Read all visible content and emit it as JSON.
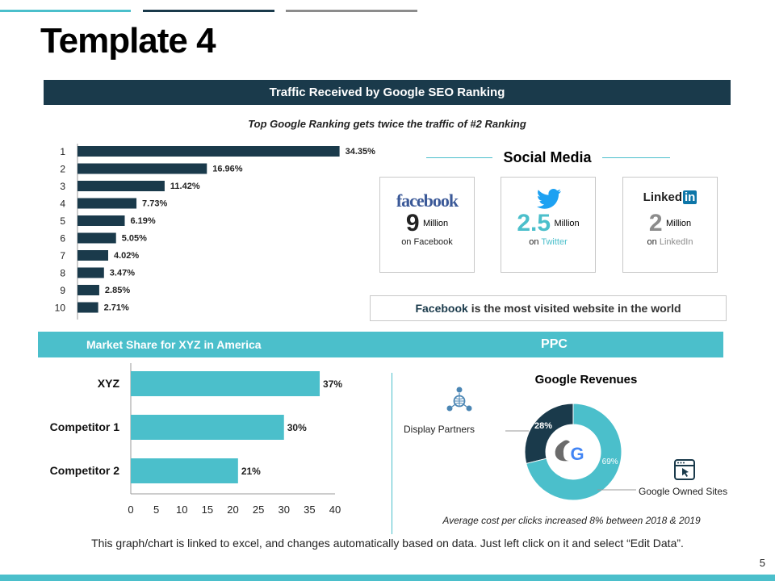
{
  "title": "Template 4",
  "colors": {
    "dark": "#1a3a4b",
    "teal": "#4bbfcb",
    "gray": "#8c8c8c"
  },
  "seo": {
    "band_label": "Traffic Received by Google SEO Ranking",
    "subtitle": "Top Google Ranking gets twice the traffic of #2 Ranking"
  },
  "social": {
    "title": "Social Media",
    "cards": [
      {
        "logo": "facebook",
        "number": "9",
        "unit": "Million",
        "on_prefix": "on ",
        "on_name": "Facebook",
        "color": "#222222"
      },
      {
        "logo": "twitter-bird-icon",
        "number": "2.5",
        "unit": "Million",
        "on_prefix": "on ",
        "on_name": "Twitter",
        "color": "#4bbfcb"
      },
      {
        "logo": "Linked",
        "logo_in": "in",
        "number": "2",
        "unit": "Million",
        "on_prefix": "on ",
        "on_name": "LinkedIn",
        "color": "#8c8c8c"
      }
    ],
    "fact_highlight": "Facebook",
    "fact_rest": " is the most visited website in the world"
  },
  "market": {
    "band_label": "Market Share for XYZ in America"
  },
  "ppc": {
    "band_label": "PPC",
    "chart_title": "Google Revenues",
    "display_partners": "Display Partners",
    "google_owned": "Google Owned Sites",
    "avg_note": "Average cost per clicks increased 8% between 2018  & 2019"
  },
  "footer": "This graph/chart is linked to excel, and changes automatically  based on data. Just left click on it and select “Edit Data”.",
  "page_number": "5",
  "chart_data": [
    {
      "type": "bar",
      "orientation": "horizontal",
      "title": "Traffic Received by Google SEO Ranking",
      "categories": [
        "1",
        "2",
        "3",
        "4",
        "5",
        "6",
        "7",
        "8",
        "9",
        "10"
      ],
      "values": [
        34.35,
        16.96,
        11.42,
        7.73,
        6.19,
        5.05,
        4.02,
        3.47,
        2.85,
        2.71
      ],
      "value_labels": [
        "34.35%",
        "16.96%",
        "11.42%",
        "7.73%",
        "6.19%",
        "5.05%",
        "4.02%",
        "3.47%",
        "2.85%",
        "2.71%"
      ],
      "xlim": [
        0,
        40
      ]
    },
    {
      "type": "bar",
      "orientation": "horizontal",
      "title": "Market Share for XYZ in America",
      "categories": [
        "XYZ",
        "Competitor 1",
        "Competitor 2"
      ],
      "values": [
        37,
        30,
        21
      ],
      "value_labels": [
        "37%",
        "30%",
        "21%"
      ],
      "xlim": [
        0,
        40
      ],
      "xticks": [
        "0",
        "5",
        "10",
        "15",
        "20",
        "25",
        "30",
        "35",
        "40"
      ]
    },
    {
      "type": "pie",
      "title": "Google Revenues",
      "labels": [
        "Display Partners",
        "Google Owned Sites"
      ],
      "values": [
        28,
        69
      ],
      "value_labels": [
        "28%",
        "69%"
      ]
    }
  ]
}
